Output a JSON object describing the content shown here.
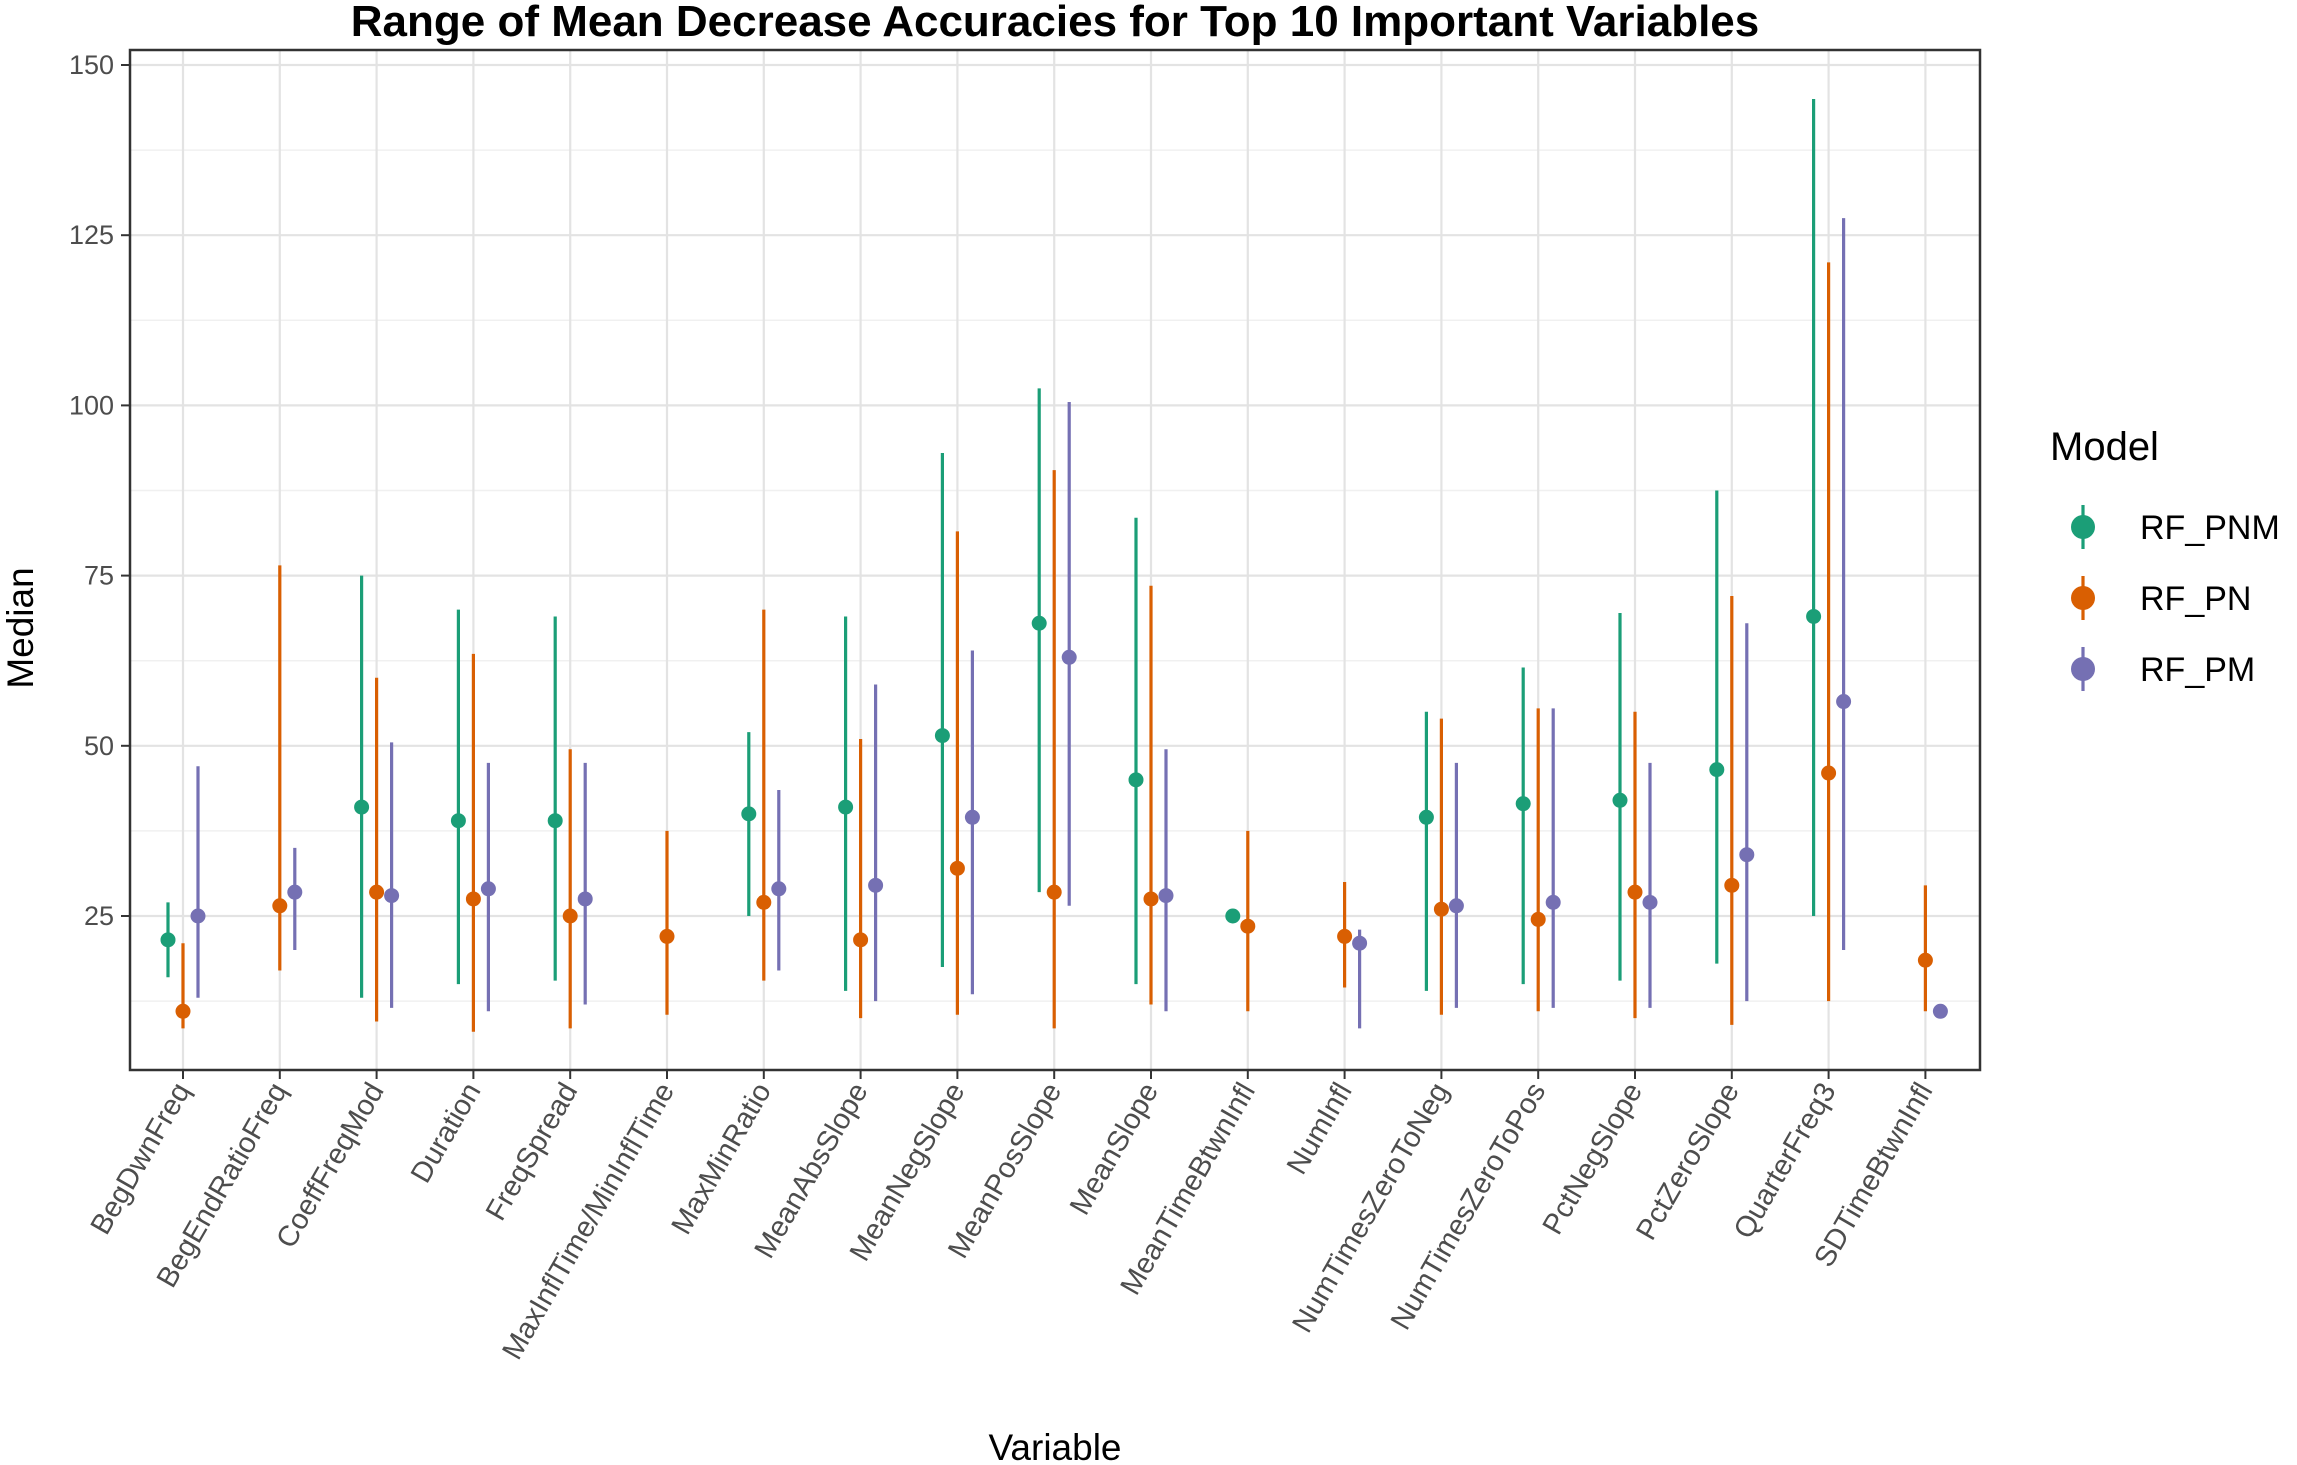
{
  "chart_data": {
    "type": "scatter",
    "subtype": "pointrange",
    "title": "Range of Mean Decrease Accuracies for Top 10 Important Variables",
    "xlabel": "Variable",
    "ylabel": "Median",
    "ylim": [
      0,
      150
    ],
    "yticks": [
      25,
      50,
      75,
      100,
      125,
      150
    ],
    "grid": true,
    "legend": {
      "title": "Model",
      "position": "right"
    },
    "categories": [
      "BegDwnFreq",
      "BegEndRatioFreq",
      "CoeffFreqMod",
      "Duration",
      "FreqSpread",
      "MaxInflTime/MinInflTime",
      "MaxMinRatio",
      "MeanAbsSlope",
      "MeanNegSlope",
      "MeanPosSlope",
      "MeanSlope",
      "MeanTimeBtwnInfl",
      "NumInfl",
      "NumTimesZeroToNeg",
      "NumTimesZeroToPos",
      "PctNegSlope",
      "PctZeroSlope",
      "QuarterFreq3",
      "SDTimeBtwnInfl"
    ],
    "series": [
      {
        "name": "RF_PNM",
        "color": "#1b9e77",
        "median": [
          21.5,
          null,
          41,
          39,
          39,
          null,
          40,
          41,
          51.5,
          68,
          45,
          25,
          null,
          39.5,
          41.5,
          42,
          46.5,
          69,
          null
        ],
        "low": [
          16,
          null,
          13,
          15,
          15.5,
          null,
          25,
          14,
          17.5,
          28.5,
          15,
          25,
          null,
          14,
          15,
          15.5,
          18,
          25,
          null
        ],
        "high": [
          27,
          null,
          75,
          70,
          69,
          null,
          52,
          69,
          93,
          102.5,
          83.5,
          25,
          null,
          55,
          61.5,
          69.5,
          87.5,
          145,
          null
        ]
      },
      {
        "name": "RF_PN",
        "color": "#d95f02",
        "median": [
          11,
          26.5,
          28.5,
          27.5,
          25,
          22,
          27,
          21.5,
          32,
          28.5,
          27.5,
          23.5,
          22,
          26,
          24.5,
          28.5,
          29.5,
          46,
          18.5
        ],
        "low": [
          8.5,
          17,
          9.5,
          8,
          8.5,
          10.5,
          15.5,
          10,
          10.5,
          8.5,
          12,
          11,
          14.5,
          10.5,
          11,
          10,
          9,
          12.5,
          11
        ],
        "high": [
          21,
          76.5,
          60,
          63.5,
          49.5,
          37.5,
          70,
          51,
          81.5,
          90.5,
          73.5,
          37.5,
          30,
          54,
          55.5,
          55,
          72,
          121,
          29.5
        ]
      },
      {
        "name": "RF_PM",
        "color": "#7570b3",
        "median": [
          25,
          28.5,
          28,
          29,
          27.5,
          null,
          29,
          29.5,
          39.5,
          63,
          28,
          null,
          21,
          26.5,
          27,
          27,
          34,
          56.5,
          11
        ],
        "low": [
          13,
          20,
          11.5,
          11,
          12,
          null,
          17,
          12.5,
          13.5,
          26.5,
          11,
          null,
          8.5,
          11.5,
          11.5,
          11.5,
          12.5,
          20,
          11
        ],
        "high": [
          47,
          35,
          50.5,
          47.5,
          47.5,
          null,
          43.5,
          59,
          64,
          100.5,
          49.5,
          null,
          23,
          47.5,
          55.5,
          47.5,
          68,
          127.5,
          11
        ]
      }
    ]
  }
}
